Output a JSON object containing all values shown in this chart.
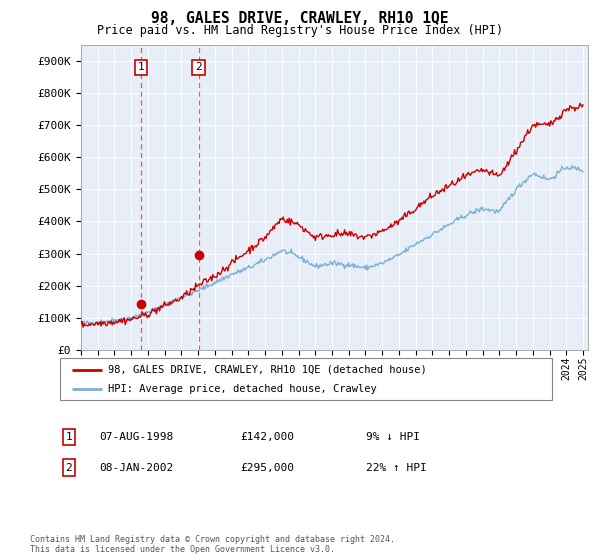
{
  "title": "98, GALES DRIVE, CRAWLEY, RH10 1QE",
  "subtitle": "Price paid vs. HM Land Registry's House Price Index (HPI)",
  "ylim": [
    0,
    950000
  ],
  "yticks": [
    0,
    100000,
    200000,
    300000,
    400000,
    500000,
    600000,
    700000,
    800000,
    900000
  ],
  "ytick_labels": [
    "£0",
    "£100K",
    "£200K",
    "£300K",
    "£400K",
    "£500K",
    "£600K",
    "£700K",
    "£800K",
    "£900K"
  ],
  "legend_line1": "98, GALES DRIVE, CRAWLEY, RH10 1QE (detached house)",
  "legend_line2": "HPI: Average price, detached house, Crawley",
  "line_color_price": "#cc0000",
  "line_color_hpi": "#7ab0d4",
  "annotation1_label": "1",
  "annotation1_date": "07-AUG-1998",
  "annotation1_price": "£142,000",
  "annotation1_hpi": "9% ↓ HPI",
  "annotation2_label": "2",
  "annotation2_date": "08-JAN-2002",
  "annotation2_price": "£295,000",
  "annotation2_hpi": "22% ↑ HPI",
  "footer": "Contains HM Land Registry data © Crown copyright and database right 2024.\nThis data is licensed under the Open Government Licence v3.0.",
  "sale1_x": 1998.58,
  "sale1_y": 142000,
  "sale2_x": 2002.03,
  "sale2_y": 295000,
  "background_color": "#e8eef7",
  "xlim_left": 1995,
  "xlim_right": 2025.3
}
